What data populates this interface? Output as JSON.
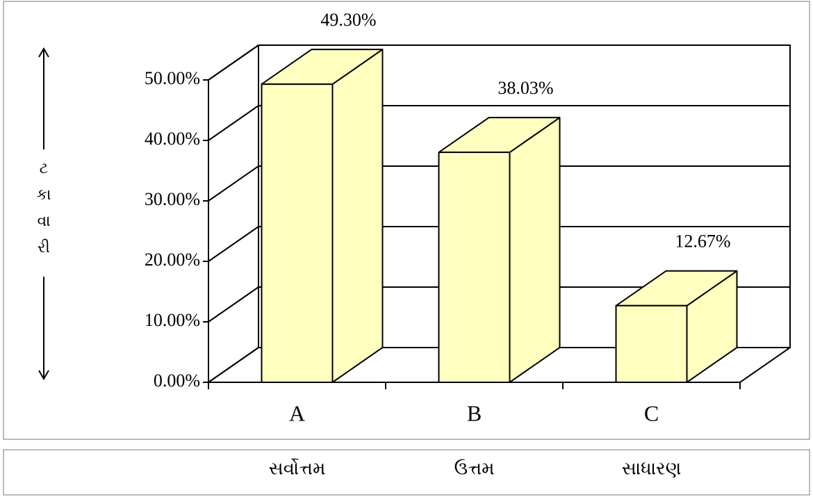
{
  "chart_data": {
    "type": "bar3d",
    "ylabel": [
      "ટ",
      "કા",
      "વા",
      "રી"
    ],
    "categories": [
      "A",
      "B",
      "C"
    ],
    "values": [
      49.3,
      38.03,
      12.67
    ],
    "value_labels": [
      "49.30%",
      "38.03%",
      "12.67%"
    ],
    "descriptions": [
      "સર્વોત્તમ",
      "ઉત્તમ",
      "સાધારણ"
    ],
    "color": "#ffffc0",
    "ylim": [
      0,
      50
    ],
    "yticks": [
      {
        "value": 0,
        "label": "0.00%"
      },
      {
        "value": 10,
        "label": "10.00%"
      },
      {
        "value": 20,
        "label": "20.00%"
      },
      {
        "value": 30,
        "label": "30.00%"
      },
      {
        "value": 40,
        "label": "40.00%"
      },
      {
        "value": 50,
        "label": "50.00%"
      }
    ],
    "grid": true
  }
}
